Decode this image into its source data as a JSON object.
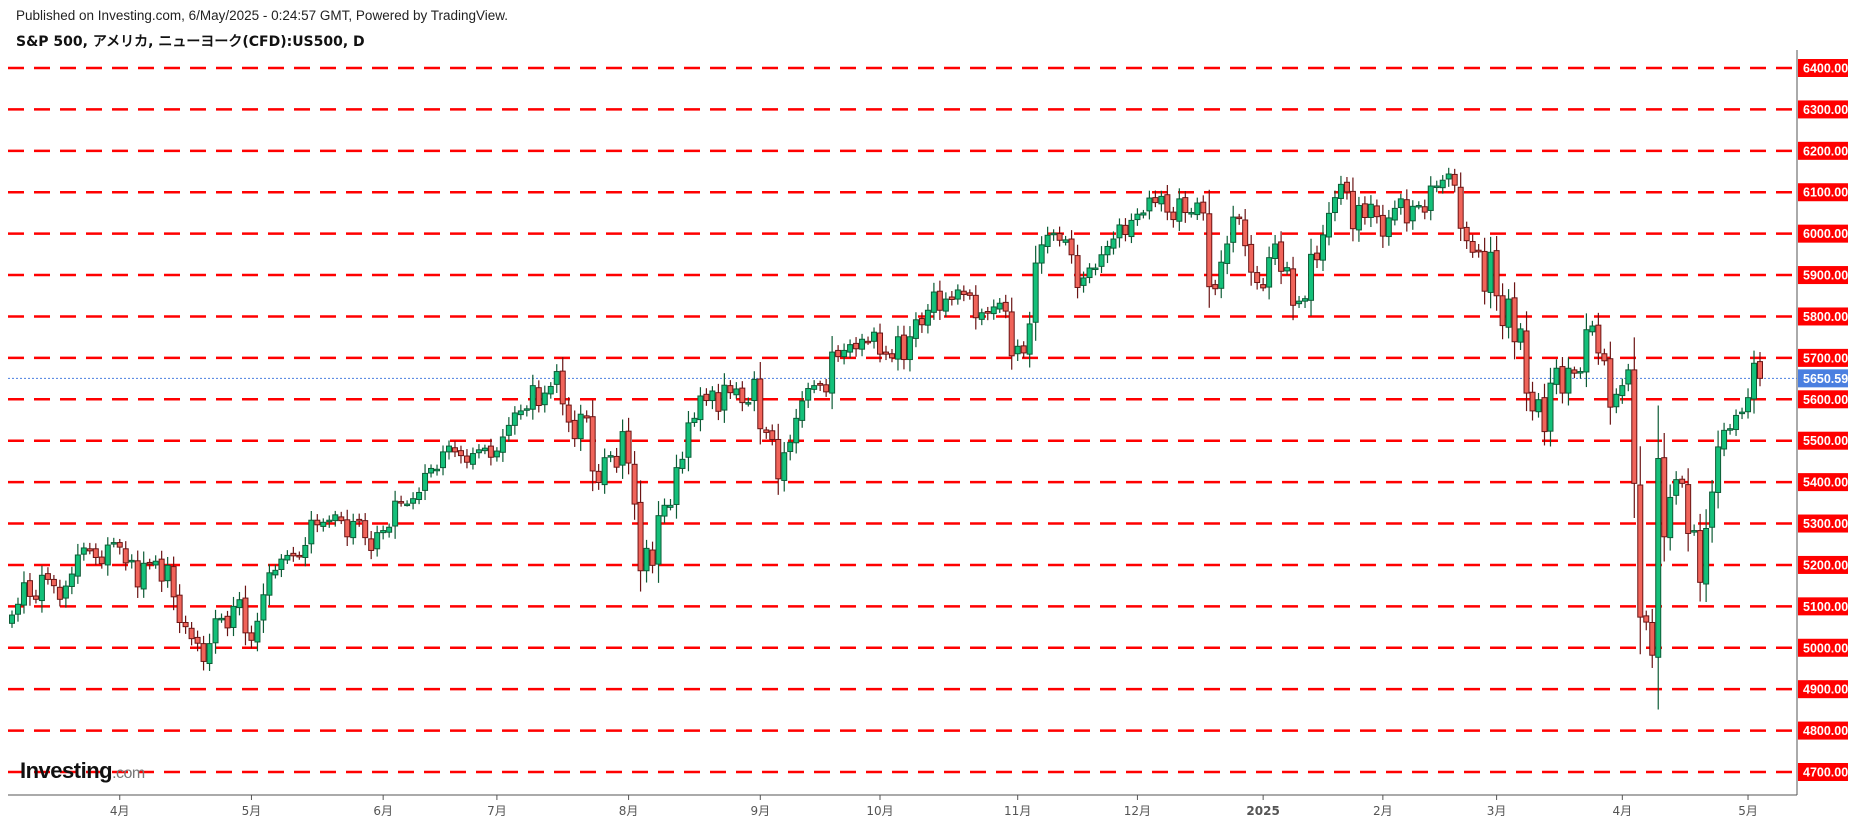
{
  "header": {
    "published": "Published on Investing.com, 6/May/2025 - 0:24:57 GMT, Powered by TradingView.",
    "title": "S&P 500, アメリカ, ニューヨーク(CFD):US500, D"
  },
  "logo": {
    "text": "Investing",
    "suffix": ".com"
  },
  "colors": {
    "up": "#14c07a",
    "up_border": "#0d5c36",
    "down": "#f0645a",
    "down_border": "#6b1414",
    "grid": "#ff0000",
    "last_price": "#4a7fe0"
  },
  "chart_data": {
    "type": "candlestick",
    "interval": "D",
    "ylim": [
      4700,
      6400
    ],
    "y_ticks": [
      6400,
      6300,
      6200,
      6100,
      6000,
      5900,
      5800,
      5700,
      5600,
      5500,
      5400,
      5300,
      5200,
      5100,
      5000,
      4900,
      4800,
      4700
    ],
    "y_tick_labels": [
      "6400.00",
      "6300.00",
      "6200.00",
      "6100.00",
      "6000.00",
      "5900.00",
      "5800.00",
      "5700.00",
      "5600.00",
      "5500.00",
      "5400.00",
      "5300.00",
      "5200.00",
      "5100.00",
      "5000.00",
      "4900.00",
      "4800.00",
      "4700.00"
    ],
    "grid": "dashed horizontal lines at each price level",
    "last_price": 5650.59,
    "last_price_label": "5650.59",
    "x_ticks": [
      {
        "label": "4月",
        "month": "2024-04"
      },
      {
        "label": "5月",
        "month": "2024-05"
      },
      {
        "label": "6月",
        "month": "2024-06"
      },
      {
        "label": "7月",
        "month": "2024-07"
      },
      {
        "label": "8月",
        "month": "2024-08"
      },
      {
        "label": "9月",
        "month": "2024-09"
      },
      {
        "label": "10月",
        "month": "2024-10"
      },
      {
        "label": "11月",
        "month": "2024-11"
      },
      {
        "label": "12月",
        "month": "2024-12"
      },
      {
        "label": "2025",
        "month": "2025-01"
      },
      {
        "label": "2月",
        "month": "2025-02"
      },
      {
        "label": "3月",
        "month": "2025-03"
      },
      {
        "label": "4月",
        "month": "2025-04"
      },
      {
        "label": "5月",
        "month": "2025-05"
      }
    ],
    "closes_by_month": {
      "2024-03": [
        [
          5,
          5079
        ],
        [
          6,
          5105
        ],
        [
          7,
          5157
        ],
        [
          8,
          5124
        ],
        [
          11,
          5117
        ],
        [
          12,
          5175
        ],
        [
          13,
          5165
        ],
        [
          14,
          5150
        ],
        [
          15,
          5117
        ],
        [
          18,
          5149
        ],
        [
          19,
          5178
        ],
        [
          20,
          5224
        ],
        [
          21,
          5241
        ],
        [
          22,
          5234
        ],
        [
          25,
          5218
        ],
        [
          26,
          5203
        ],
        [
          27,
          5248
        ],
        [
          28,
          5254
        ]
      ],
      "2024-04": [
        [
          1,
          5243
        ],
        [
          2,
          5205
        ],
        [
          3,
          5211
        ],
        [
          4,
          5147
        ],
        [
          5,
          5204
        ],
        [
          8,
          5202
        ],
        [
          9,
          5209
        ],
        [
          10,
          5161
        ],
        [
          11,
          5199
        ],
        [
          12,
          5123
        ],
        [
          15,
          5061
        ],
        [
          16,
          5051
        ],
        [
          17,
          5022
        ],
        [
          18,
          5011
        ],
        [
          19,
          4967
        ],
        [
          22,
          5010
        ],
        [
          23,
          5070
        ],
        [
          24,
          5071
        ],
        [
          25,
          5048
        ],
        [
          26,
          5100
        ],
        [
          29,
          5116
        ],
        [
          30,
          5036
        ]
      ],
      "2024-05": [
        [
          1,
          5018
        ],
        [
          2,
          5064
        ],
        [
          3,
          5128
        ],
        [
          6,
          5181
        ],
        [
          7,
          5187
        ],
        [
          8,
          5214
        ],
        [
          9,
          5223
        ],
        [
          10,
          5222
        ],
        [
          13,
          5221
        ],
        [
          14,
          5247
        ],
        [
          15,
          5308
        ],
        [
          16,
          5297
        ],
        [
          17,
          5303
        ],
        [
          20,
          5308
        ],
        [
          21,
          5321
        ],
        [
          22,
          5307
        ],
        [
          23,
          5268
        ],
        [
          24,
          5305
        ],
        [
          28,
          5306
        ],
        [
          29,
          5266
        ],
        [
          30,
          5235
        ],
        [
          31,
          5278
        ]
      ],
      "2024-06": [
        [
          3,
          5283
        ],
        [
          4,
          5291
        ],
        [
          5,
          5354
        ],
        [
          6,
          5352
        ],
        [
          7,
          5347
        ],
        [
          10,
          5360
        ],
        [
          11,
          5375
        ],
        [
          12,
          5421
        ],
        [
          13,
          5433
        ],
        [
          14,
          5431
        ],
        [
          17,
          5473
        ],
        [
          18,
          5487
        ],
        [
          20,
          5473
        ],
        [
          21,
          5464
        ],
        [
          24,
          5448
        ],
        [
          25,
          5469
        ],
        [
          26,
          5478
        ],
        [
          27,
          5482
        ],
        [
          28,
          5460
        ]
      ],
      "2024-07": [
        [
          1,
          5475
        ],
        [
          2,
          5509
        ],
        [
          3,
          5537
        ],
        [
          5,
          5567
        ],
        [
          8,
          5572
        ],
        [
          9,
          5577
        ],
        [
          10,
          5633
        ],
        [
          11,
          5585
        ],
        [
          12,
          5615
        ],
        [
          15,
          5631
        ],
        [
          16,
          5667
        ],
        [
          17,
          5589
        ],
        [
          18,
          5545
        ],
        [
          19,
          5505
        ],
        [
          22,
          5564
        ],
        [
          23,
          5555
        ],
        [
          24,
          5427
        ],
        [
          25,
          5399
        ],
        [
          26,
          5459
        ],
        [
          29,
          5464
        ],
        [
          30,
          5436
        ],
        [
          31,
          5522
        ]
      ],
      "2024-08": [
        [
          1,
          5446
        ],
        [
          2,
          5347
        ],
        [
          5,
          5186
        ],
        [
          6,
          5240
        ],
        [
          7,
          5199
        ],
        [
          8,
          5319
        ],
        [
          9,
          5344
        ],
        [
          12,
          5344
        ],
        [
          13,
          5435
        ],
        [
          14,
          5455
        ],
        [
          15,
          5543
        ],
        [
          16,
          5554
        ],
        [
          19,
          5608
        ],
        [
          20,
          5597
        ],
        [
          21,
          5620
        ],
        [
          22,
          5571
        ],
        [
          23,
          5634
        ],
        [
          26,
          5616
        ],
        [
          27,
          5625
        ],
        [
          28,
          5592
        ],
        [
          29,
          5592
        ],
        [
          30,
          5648
        ]
      ],
      "2024-09": [
        [
          3,
          5529
        ],
        [
          4,
          5520
        ],
        [
          5,
          5503
        ],
        [
          6,
          5408
        ],
        [
          9,
          5471
        ],
        [
          10,
          5496
        ],
        [
          11,
          5554
        ],
        [
          12,
          5596
        ],
        [
          13,
          5626
        ],
        [
          16,
          5633
        ],
        [
          17,
          5634
        ],
        [
          18,
          5618
        ],
        [
          19,
          5714
        ],
        [
          20,
          5703
        ],
        [
          23,
          5718
        ],
        [
          24,
          5732
        ],
        [
          25,
          5722
        ],
        [
          26,
          5745
        ],
        [
          27,
          5738
        ],
        [
          30,
          5762
        ]
      ],
      "2024-10": [
        [
          1,
          5709
        ],
        [
          2,
          5709
        ],
        [
          3,
          5700
        ],
        [
          4,
          5751
        ],
        [
          7,
          5696
        ],
        [
          8,
          5751
        ],
        [
          9,
          5792
        ],
        [
          10,
          5780
        ],
        [
          11,
          5815
        ],
        [
          14,
          5859
        ],
        [
          15,
          5815
        ],
        [
          16,
          5842
        ],
        [
          17,
          5841
        ],
        [
          18,
          5864
        ],
        [
          21,
          5853
        ],
        [
          22,
          5851
        ],
        [
          23,
          5797
        ],
        [
          24,
          5809
        ],
        [
          25,
          5808
        ],
        [
          28,
          5823
        ],
        [
          29,
          5832
        ],
        [
          30,
          5813
        ],
        [
          31,
          5705
        ]
      ],
      "2024-11": [
        [
          1,
          5728
        ],
        [
          4,
          5712
        ],
        [
          5,
          5782
        ],
        [
          6,
          5929
        ],
        [
          7,
          5973
        ],
        [
          8,
          5996
        ],
        [
          11,
          6001
        ],
        [
          12,
          5984
        ],
        [
          13,
          5985
        ],
        [
          14,
          5949
        ],
        [
          15,
          5870
        ],
        [
          18,
          5893
        ],
        [
          19,
          5917
        ],
        [
          20,
          5917
        ],
        [
          21,
          5949
        ],
        [
          22,
          5969
        ],
        [
          25,
          5987
        ],
        [
          26,
          6021
        ],
        [
          27,
          5998
        ],
        [
          29,
          6032
        ]
      ],
      "2024-12": [
        [
          2,
          6047
        ],
        [
          3,
          6050
        ],
        [
          4,
          6086
        ],
        [
          5,
          6075
        ],
        [
          6,
          6090
        ],
        [
          9,
          6052
        ],
        [
          10,
          6034
        ],
        [
          11,
          6084
        ],
        [
          12,
          6051
        ],
        [
          13,
          6051
        ],
        [
          16,
          6074
        ],
        [
          17,
          6050
        ],
        [
          18,
          5872
        ],
        [
          19,
          5867
        ],
        [
          20,
          5931
        ],
        [
          23,
          5975
        ],
        [
          24,
          6040
        ],
        [
          26,
          6037
        ],
        [
          27,
          5971
        ],
        [
          30,
          5907
        ],
        [
          31,
          5882
        ]
      ],
      "2025-01": [
        [
          2,
          5869
        ],
        [
          3,
          5942
        ],
        [
          6,
          5975
        ],
        [
          7,
          5909
        ],
        [
          8,
          5918
        ],
        [
          10,
          5827
        ],
        [
          13,
          5837
        ],
        [
          14,
          5843
        ],
        [
          15,
          5950
        ],
        [
          16,
          5937
        ],
        [
          17,
          5997
        ],
        [
          21,
          6049
        ],
        [
          22,
          6087
        ],
        [
          23,
          6119
        ],
        [
          24,
          6101
        ],
        [
          27,
          6012
        ],
        [
          28,
          6068
        ],
        [
          29,
          6039
        ],
        [
          30,
          6071
        ],
        [
          31,
          6041
        ]
      ],
      "2025-02": [
        [
          3,
          5994
        ],
        [
          4,
          6038
        ],
        [
          5,
          6061
        ],
        [
          6,
          6084
        ],
        [
          7,
          6026
        ],
        [
          10,
          6066
        ],
        [
          11,
          6068
        ],
        [
          12,
          6052
        ],
        [
          13,
          6115
        ],
        [
          14,
          6115
        ],
        [
          18,
          6129
        ],
        [
          19,
          6144
        ],
        [
          20,
          6117
        ],
        [
          21,
          6013
        ],
        [
          24,
          5983
        ],
        [
          25,
          5955
        ],
        [
          26,
          5956
        ],
        [
          27,
          5861
        ],
        [
          28,
          5955
        ]
      ],
      "2025-03": [
        [
          3,
          5850
        ],
        [
          4,
          5778
        ],
        [
          5,
          5842
        ],
        [
          6,
          5739
        ],
        [
          7,
          5770
        ],
        [
          10,
          5615
        ],
        [
          11,
          5572
        ],
        [
          12,
          5599
        ],
        [
          13,
          5522
        ],
        [
          14,
          5639
        ],
        [
          17,
          5675
        ],
        [
          18,
          5615
        ],
        [
          19,
          5675
        ],
        [
          20,
          5663
        ],
        [
          21,
          5667
        ],
        [
          24,
          5768
        ],
        [
          25,
          5777
        ],
        [
          26,
          5712
        ],
        [
          27,
          5693
        ],
        [
          28,
          5581
        ],
        [
          31,
          5612
        ]
      ],
      "2025-04": [
        [
          1,
          5633
        ],
        [
          2,
          5671
        ],
        [
          3,
          5397
        ],
        [
          4,
          5074
        ],
        [
          7,
          5062
        ],
        [
          8,
          4982
        ],
        [
          9,
          5457
        ],
        [
          10,
          5268
        ],
        [
          11,
          5363
        ],
        [
          14,
          5406
        ],
        [
          15,
          5397
        ],
        [
          16,
          5276
        ],
        [
          17,
          5283
        ],
        [
          21,
          5158
        ],
        [
          22,
          5288
        ],
        [
          23,
          5376
        ],
        [
          24,
          5485
        ],
        [
          25,
          5525
        ],
        [
          28,
          5529
        ],
        [
          29,
          5561
        ],
        [
          30,
          5569
        ]
      ],
      "2025-05": [
        [
          1,
          5604
        ],
        [
          2,
          5687
        ],
        [
          5,
          5650.59
        ]
      ]
    }
  }
}
